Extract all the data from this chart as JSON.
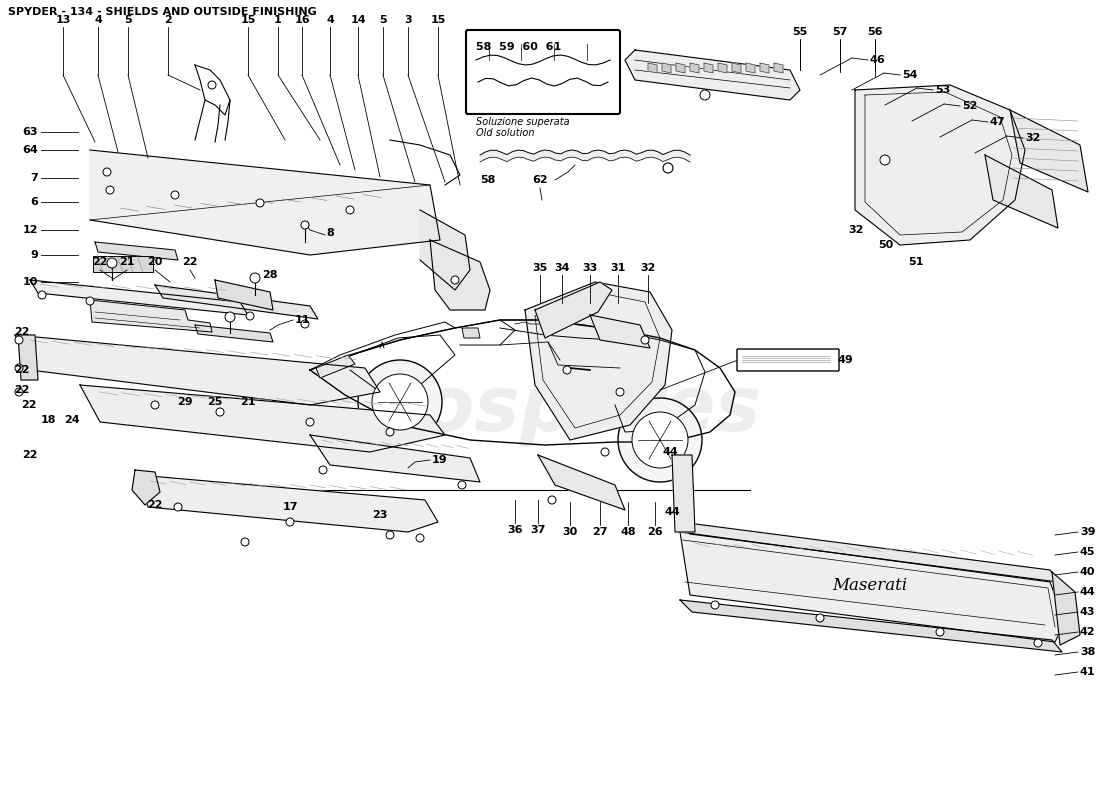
{
  "title": "SPYDER - 134 - SHIELDS AND OUTSIDE FINISHING",
  "bg": "#ffffff",
  "title_fs": 8,
  "lfs": 8,
  "wm_text": "eurospares",
  "wm_color": "#d8d8d8",
  "box_labels": "58  59  60  61",
  "box_text1": "Soluzione superata",
  "box_text2": "Old solution",
  "label_49_text": "49",
  "maserati_text": "Maserati"
}
